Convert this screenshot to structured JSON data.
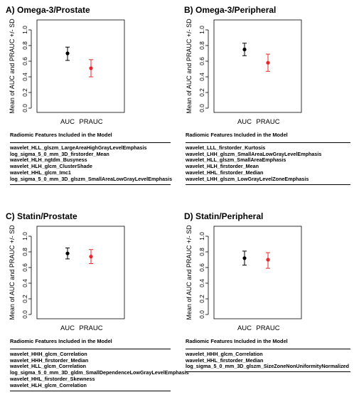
{
  "colors": {
    "auc": "#000000",
    "prauc": "#e8262b",
    "axis": "#000000",
    "frame": "#000000"
  },
  "chart_data": [
    {
      "type": "scatter",
      "title": "A) Omega-3/Prostate",
      "ylabel": "Mean of AUC and PRAUC +/- SD",
      "categories": [
        "AUC",
        "PRAUC"
      ],
      "yticks": [
        "0.0",
        "0.2",
        "0.4",
        "0.6",
        "0.8",
        "1.0"
      ],
      "ylim": [
        0,
        1
      ],
      "series": [
        {
          "category": "AUC",
          "mean": 0.7,
          "lower": 0.61,
          "upper": 0.78,
          "color": "#000000"
        },
        {
          "category": "PRAUC",
          "mean": 0.51,
          "lower": 0.4,
          "upper": 0.62,
          "color": "#e8262b"
        }
      ],
      "features_heading": "Radiomic Features Included in the Model",
      "features": [
        "wavelet_HLL_glszm_LargeAreaHighGrayLevelEmphasis",
        "log_sigma_5_0_mm_3D_firstorder_Mean",
        "wavelet_HLH_ngtdm_Busyness",
        "wavelet_HLH_glcm_ClusterShade",
        "wavelet_HHL_glcm_Imc1",
        "log_sigma_5_0_mm_3D_glszm_SmallAreaLowGrayLevelEmphasis"
      ]
    },
    {
      "type": "scatter",
      "title": "B) Omega-3/Peripheral",
      "ylabel": "Mean of AUC and PRAUC +/- SD",
      "categories": [
        "AUC",
        "PRAUC"
      ],
      "yticks": [
        "0.0",
        "0.2",
        "0.4",
        "0.6",
        "0.8",
        "1.0"
      ],
      "ylim": [
        0,
        1
      ],
      "series": [
        {
          "category": "AUC",
          "mean": 0.75,
          "lower": 0.67,
          "upper": 0.83,
          "color": "#000000"
        },
        {
          "category": "PRAUC",
          "mean": 0.58,
          "lower": 0.47,
          "upper": 0.69,
          "color": "#e8262b"
        }
      ],
      "features_heading": "Radiomic Features Included in the Model",
      "features": [
        "wavelet_LLL_firstorder_Kurtosis",
        "wavelet_LHH_glszm_SmallAreaLowGrayLevelEmphasis",
        "wavelet_HLL_glszm_SmallAreaEmphasis",
        "wavelet_HLH_firstorder_Mean",
        "wavelet_HHL_firstorder_Median",
        "wavelet_LHH_glszm_LowGrayLevelZoneEmphasis"
      ]
    },
    {
      "type": "scatter",
      "title": "C) Statin/Prostate",
      "ylabel": "Mean of AUC and PRAUC +/- SD",
      "categories": [
        "AUC",
        "PRAUC"
      ],
      "yticks": [
        "0.0",
        "0.2",
        "0.4",
        "0.6",
        "0.8",
        "1.0"
      ],
      "ylim": [
        0,
        1
      ],
      "series": [
        {
          "category": "AUC",
          "mean": 0.78,
          "lower": 0.71,
          "upper": 0.85,
          "color": "#000000"
        },
        {
          "category": "PRAUC",
          "mean": 0.74,
          "lower": 0.65,
          "upper": 0.83,
          "color": "#e8262b"
        }
      ],
      "features_heading": "Radiomic Features Included in the Model",
      "features": [
        "wavelet_HHH_glcm_Correlation",
        "wavelet_HHH_firstorder_Median",
        "wavelet_HLL_glcm_Correlation",
        "log_sigma_5_0_mm_3D_gldm_SmallDependenceLowGrayLevelEmphasis",
        "wavelet_HHL_firstorder_Skewness",
        "wavelet_HLH_glcm_Correlation"
      ]
    },
    {
      "type": "scatter",
      "title": "D) Statin/Peripheral",
      "ylabel": "Mean of AUC and PRAUC +/- SD",
      "categories": [
        "AUC",
        "PRAUC"
      ],
      "yticks": [
        "0.0",
        "0.2",
        "0.4",
        "0.6",
        "0.8",
        "1.0"
      ],
      "ylim": [
        0,
        1
      ],
      "series": [
        {
          "category": "AUC",
          "mean": 0.72,
          "lower": 0.63,
          "upper": 0.81,
          "color": "#000000"
        },
        {
          "category": "PRAUC",
          "mean": 0.7,
          "lower": 0.59,
          "upper": 0.79,
          "color": "#e8262b"
        }
      ],
      "features_heading": "Radiomic Features Included in the Model",
      "features": [
        "wavelet_HHH_glcm_Correlation",
        "wavelet_HHL_firstorder_Median",
        "log_sigma_5_0_mm_3D_glszm_SizeZoneNonUniformityNormalized"
      ]
    }
  ]
}
